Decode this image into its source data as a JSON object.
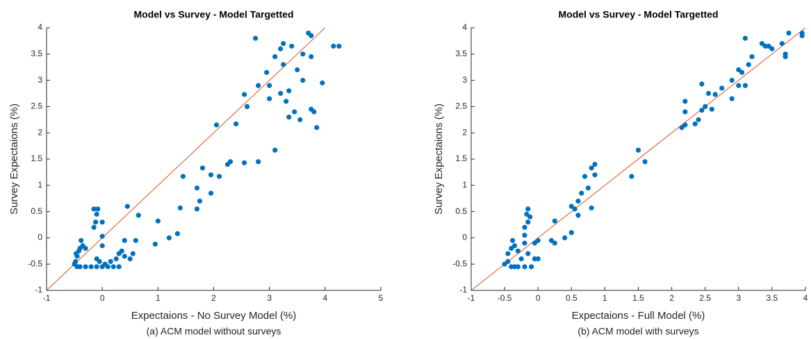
{
  "chart_data": [
    {
      "type": "scatter",
      "title": "Model vs Survey - Model Targetted",
      "xlabel": "Expectaions - No Survey Model (%)",
      "ylabel": "Survey Expectaions (%)",
      "caption": "(a) ACM model without surveys",
      "xlim": [
        -1,
        5
      ],
      "ylim": [
        -1,
        4
      ],
      "xticks": [
        -1,
        0,
        1,
        2,
        3,
        4,
        5
      ],
      "yticks": [
        -1,
        -0.5,
        0,
        0.5,
        1,
        1.5,
        2,
        2.5,
        3,
        3.5,
        4
      ],
      "line_color": "#d95319",
      "x": [
        -0.5,
        -0.48,
        -0.45,
        -0.47,
        -0.42,
        -0.4,
        -0.38,
        -0.35,
        -0.3,
        -0.45,
        -0.4,
        -0.3,
        -0.2,
        -0.1,
        0,
        0.1,
        0.2,
        0.3,
        -0.05,
        -0.1,
        0.05,
        0.15,
        0.25,
        0.3,
        0.35,
        0.4,
        0.5,
        0.55,
        0.6,
        0.65,
        0.45,
        0.4,
        -0.15,
        -0.12,
        -0.1,
        -0.15,
        -0.08,
        0,
        0,
        0,
        0.95,
        1.0,
        1.2,
        1.35,
        1.4,
        1.45,
        1.7,
        1.7,
        1.75,
        1.8,
        1.95,
        1.95,
        2.05,
        2.1,
        2.25,
        2.3,
        2.4,
        2.55,
        2.55,
        2.6,
        2.8,
        2.75,
        2.8,
        2.95,
        3.0,
        3.0,
        3.1,
        3.1,
        3.2,
        3.2,
        3.25,
        3.25,
        3.3,
        3.35,
        3.35,
        3.4,
        3.5,
        3.55,
        3.6,
        3.6,
        3.7,
        3.75,
        3.75,
        3.8,
        3.85,
        3.95,
        4.15,
        4.25,
        3.45,
        3.75
      ],
      "series": [
        {
          "color": "#0072bd",
          "values": [
            -0.5,
            -0.45,
            -0.35,
            -0.3,
            -0.25,
            -0.2,
            -0.05,
            -0.15,
            -0.2,
            -0.55,
            -0.55,
            -0.55,
            -0.55,
            -0.55,
            -0.55,
            -0.55,
            -0.55,
            -0.55,
            -0.45,
            -0.4,
            -0.5,
            -0.45,
            -0.4,
            -0.3,
            -0.25,
            -0.35,
            -0.4,
            -0.3,
            -0.05,
            0.43,
            0.6,
            -0.05,
            0.2,
            0.3,
            0.45,
            0.55,
            0.55,
            0.3,
            0.03,
            -0.15,
            -0.12,
            0.32,
            0.0,
            0.08,
            0.57,
            1.17,
            0.95,
            0.55,
            0.7,
            1.33,
            0.85,
            1.2,
            2.15,
            1.17,
            1.4,
            1.45,
            2.17,
            1.43,
            2.73,
            2.5,
            1.45,
            3.8,
            2.9,
            3.15,
            2.9,
            2.65,
            1.67,
            3.45,
            3.6,
            2.75,
            3.7,
            3.3,
            2.6,
            2.8,
            2.3,
            3.65,
            3.2,
            2.25,
            3.5,
            3.0,
            3.9,
            3.85,
            2.45,
            2.4,
            2.1,
            2.95,
            3.65,
            3.65,
            2.4,
            3.45
          ]
        }
      ]
    },
    {
      "type": "scatter",
      "title": "Model vs Survey - Model Targetted",
      "xlabel": "Expectaions - Full Model (%)",
      "ylabel": "Survey Expectaions (%)",
      "caption": "(b) ACM model with surveys",
      "xlim": [
        -1,
        4
      ],
      "ylim": [
        -1,
        4
      ],
      "xticks": [
        -1,
        -0.5,
        0,
        0.5,
        1,
        1.5,
        2,
        2.5,
        3,
        3.5,
        4
      ],
      "yticks": [
        -1,
        -0.5,
        0,
        0.5,
        1,
        1.5,
        2,
        2.5,
        3,
        3.5,
        4
      ],
      "line_color": "#d95319",
      "x": [
        -0.5,
        -0.45,
        -0.45,
        -0.4,
        -0.38,
        -0.35,
        -0.3,
        -0.4,
        -0.3,
        -0.2,
        -0.1,
        -0.25,
        -0.15,
        -0.05,
        0,
        -0.05,
        -0.2,
        -0.2,
        -0.15,
        -0.17,
        -0.15,
        -0.12,
        -0.2,
        0.2,
        0.25,
        0.25,
        0.4,
        0.5,
        0.5,
        0.55,
        0.6,
        0.6,
        0.65,
        0.7,
        0.75,
        0.8,
        0.85,
        0.85,
        0.8,
        1.4,
        1.5,
        1.6,
        2.15,
        2.2,
        2.2,
        2.2,
        2.35,
        2.4,
        2.45,
        2.5,
        2.45,
        2.55,
        2.6,
        2.65,
        2.75,
        2.9,
        2.9,
        3.0,
        3.05,
        3.1,
        3.1,
        3.15,
        3.2,
        3.35,
        3.4,
        3.5,
        3.45,
        3.65,
        3.7,
        3.7,
        3.75,
        3.95,
        3.95,
        3.0,
        0,
        -0.35
      ],
      "series": [
        {
          "color": "#0072bd",
          "values": [
            -0.5,
            -0.45,
            -0.3,
            -0.2,
            -0.05,
            -0.15,
            -0.25,
            -0.55,
            -0.55,
            -0.55,
            -0.55,
            -0.4,
            -0.3,
            -0.4,
            -0.05,
            -0.1,
            0.05,
            0.2,
            0.3,
            0.45,
            0.55,
            0.4,
            -0.1,
            -0.05,
            0.32,
            -0.1,
            0.0,
            0.1,
            0.6,
            0.55,
            0.43,
            0.7,
            0.85,
            1.17,
            0.95,
            1.33,
            1.4,
            1.2,
            0.57,
            1.17,
            1.67,
            1.45,
            2.1,
            2.15,
            2.4,
            2.6,
            2.17,
            2.25,
            2.43,
            2.5,
            2.93,
            2.75,
            2.45,
            2.73,
            2.85,
            3.0,
            2.65,
            2.9,
            3.15,
            2.9,
            3.8,
            3.3,
            3.45,
            3.7,
            3.65,
            3.6,
            3.65,
            3.7,
            3.5,
            3.45,
            3.9,
            3.85,
            3.9,
            3.2,
            -0.4,
            -0.55
          ]
        }
      ]
    }
  ]
}
